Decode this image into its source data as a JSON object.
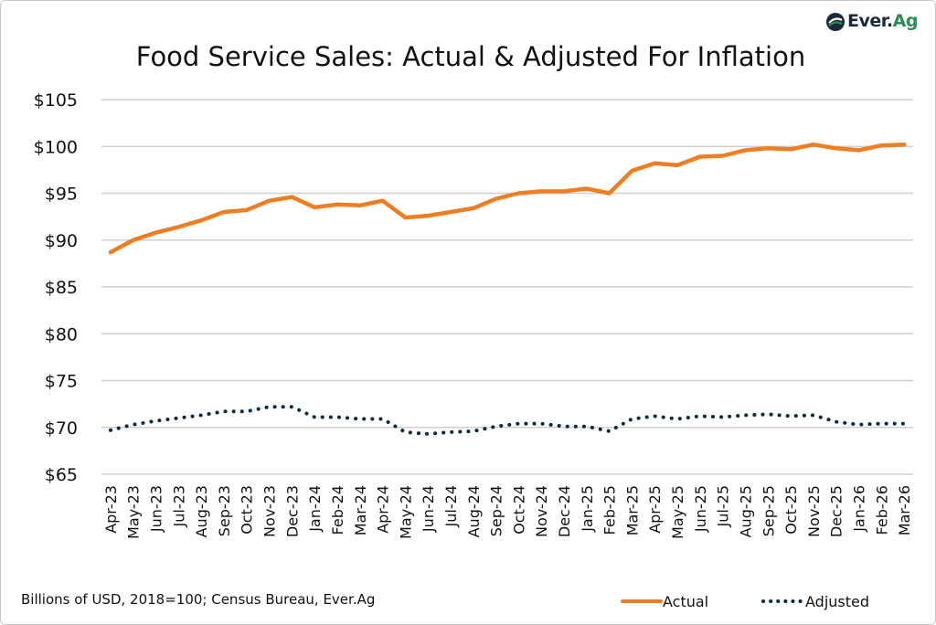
{
  "header": {
    "title": "Food Service Sales: Actual & Adjusted For Inflation",
    "logo_text": "Ever.Ag",
    "logo_text_main": "Ever.",
    "logo_text_accent": "Ag"
  },
  "footnote": "Billions of USD, 2018=100; Census Bureau, Ever.Ag",
  "colors": {
    "actual": "#ef7d22",
    "adjusted": "#0f2b3f",
    "grid": "#d0d0d0",
    "logo_accent": "#2e8b57"
  },
  "chart_data": {
    "type": "line",
    "title": "Food Service Sales: Actual & Adjusted For Inflation",
    "xlabel": "",
    "ylabel": "",
    "ylim": [
      65,
      105
    ],
    "y_ticks": [
      "$65",
      "$70",
      "$75",
      "$80",
      "$85",
      "$90",
      "$95",
      "$100",
      "$105"
    ],
    "y_tick_values": [
      65,
      70,
      75,
      80,
      85,
      90,
      95,
      100,
      105
    ],
    "grid": true,
    "legend_position": "bottom-right",
    "categories": [
      "Apr-23",
      "May-23",
      "Jun-23",
      "Jul-23",
      "Aug-23",
      "Sep-23",
      "Oct-23",
      "Nov-23",
      "Dec-23",
      "Jan-24",
      "Feb-24",
      "Mar-24",
      "Apr-24",
      "May-24",
      "Jun-24",
      "Jul-24",
      "Aug-24",
      "Sep-24",
      "Oct-24",
      "Nov-24",
      "Dec-24",
      "Jan-25",
      "Feb-25",
      "Mar-25",
      "Apr-25",
      "May-25",
      "Jun-25",
      "Jul-25",
      "Aug-25",
      "Sep-25",
      "Oct-25",
      "Nov-25",
      "Dec-25",
      "Jan-26",
      "Feb-26",
      "Mar-26"
    ],
    "series": [
      {
        "name": "Actual",
        "style": "solid",
        "values": [
          88.7,
          90.0,
          90.8,
          91.4,
          92.1,
          93.0,
          93.2,
          94.2,
          94.6,
          93.5,
          93.8,
          93.7,
          94.2,
          92.4,
          92.6,
          93.0,
          93.4,
          94.4,
          95.0,
          95.2,
          95.2,
          95.5,
          95.0,
          97.4,
          98.2,
          98.0,
          98.9,
          99.0,
          99.6,
          99.8,
          99.7,
          100.2,
          99.8,
          99.6,
          100.1,
          100.2
        ]
      },
      {
        "name": "Adjusted",
        "style": "dotted",
        "values": [
          69.7,
          70.3,
          70.7,
          71.0,
          71.3,
          71.7,
          71.7,
          72.2,
          72.2,
          71.1,
          71.1,
          70.9,
          70.9,
          69.5,
          69.3,
          69.5,
          69.6,
          70.1,
          70.4,
          70.4,
          70.1,
          70.1,
          69.6,
          70.9,
          71.2,
          70.9,
          71.2,
          71.1,
          71.3,
          71.4,
          71.2,
          71.3,
          70.6,
          70.3,
          70.4,
          70.4
        ]
      }
    ]
  }
}
